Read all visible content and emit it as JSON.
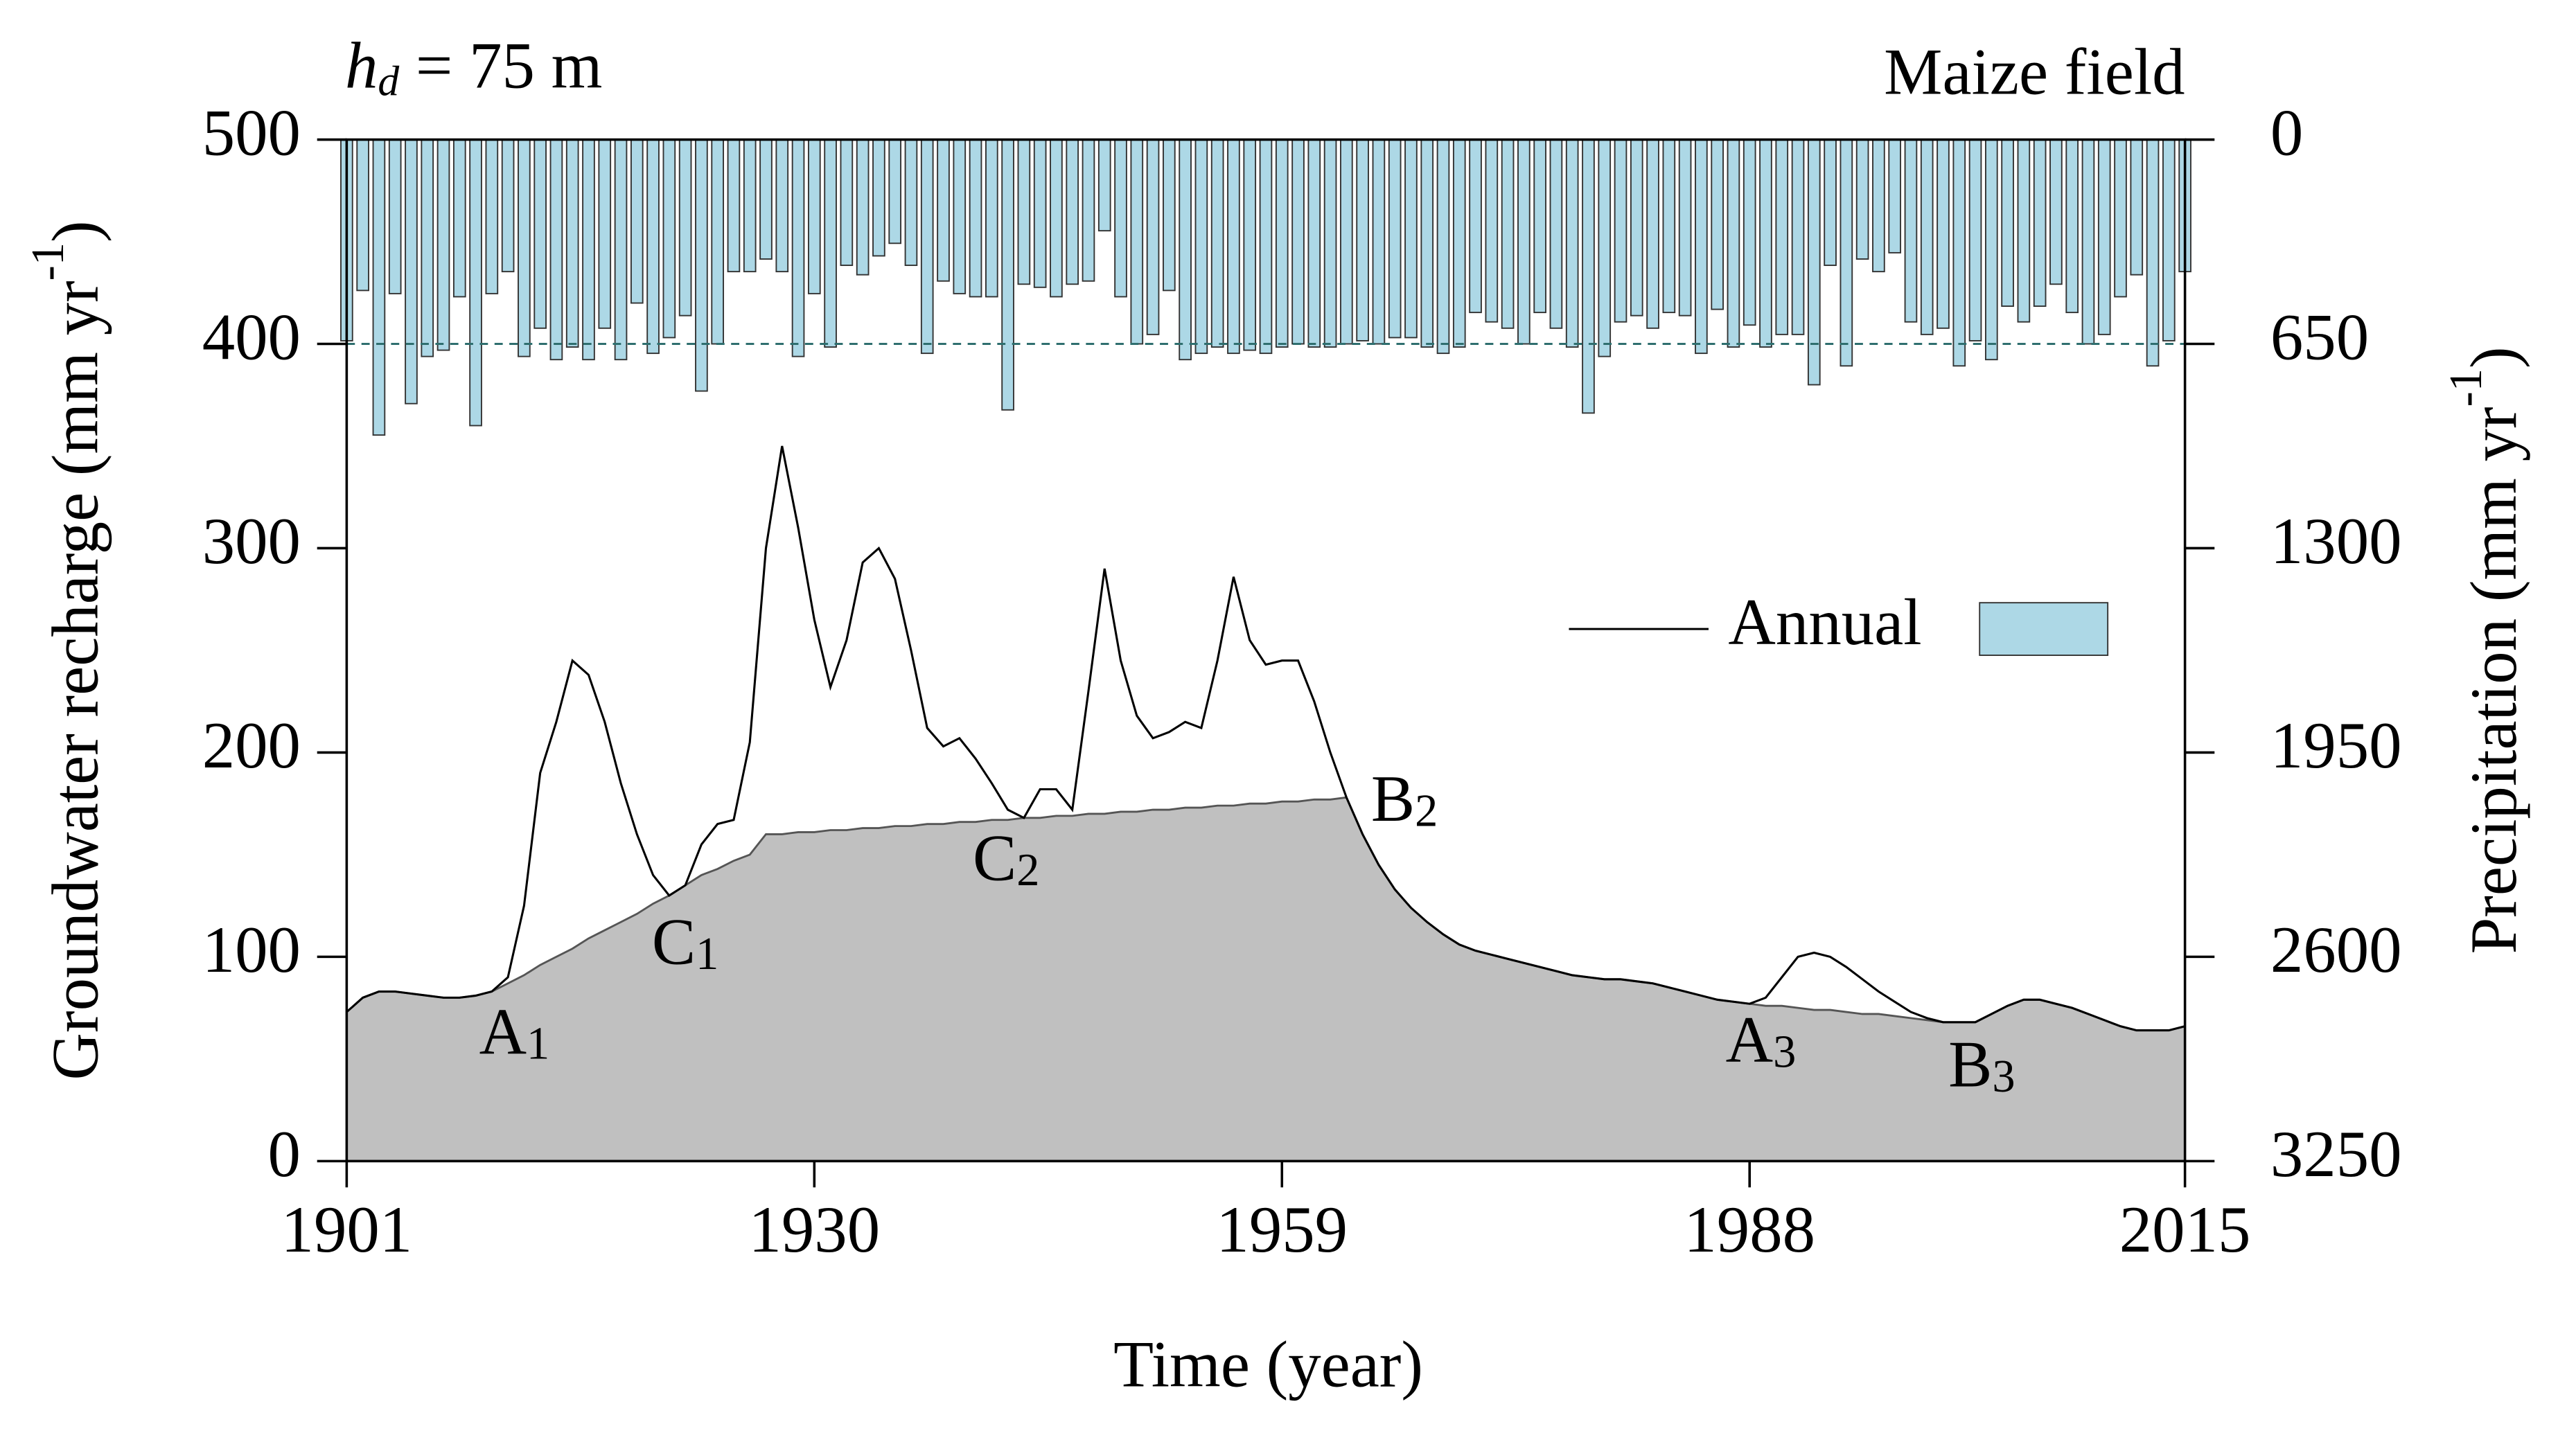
{
  "chart_data": {
    "type": "line",
    "title": {
      "var": "h",
      "sub": "d",
      "rest": "= 75 m"
    },
    "title_right": "Maize field",
    "xlabel": "Time (year)",
    "ylabel": {
      "text": "Groundwater recharge (mm yr",
      "sup": "-1",
      "end": ")"
    },
    "y2label": {
      "text": "Precipitation (mm yr",
      "sup": "-1",
      "end": ")"
    },
    "x": [
      1901,
      1902,
      1903,
      1904,
      1905,
      1906,
      1907,
      1908,
      1909,
      1910,
      1911,
      1912,
      1913,
      1914,
      1915,
      1916,
      1917,
      1918,
      1919,
      1920,
      1921,
      1922,
      1923,
      1924,
      1925,
      1926,
      1927,
      1928,
      1929,
      1930,
      1931,
      1932,
      1933,
      1934,
      1935,
      1936,
      1937,
      1938,
      1939,
      1940,
      1941,
      1942,
      1943,
      1944,
      1945,
      1946,
      1947,
      1948,
      1949,
      1950,
      1951,
      1952,
      1953,
      1954,
      1955,
      1956,
      1957,
      1958,
      1959,
      1960,
      1961,
      1962,
      1963,
      1964,
      1965,
      1966,
      1967,
      1968,
      1969,
      1970,
      1971,
      1972,
      1973,
      1974,
      1975,
      1976,
      1977,
      1978,
      1979,
      1980,
      1981,
      1982,
      1983,
      1984,
      1985,
      1986,
      1987,
      1988,
      1989,
      1990,
      1991,
      1992,
      1993,
      1994,
      1995,
      1996,
      1997,
      1998,
      1999,
      2000,
      2001,
      2002,
      2003,
      2004,
      2005,
      2006,
      2007,
      2008,
      2009,
      2010,
      2011,
      2012,
      2013,
      2014,
      2015
    ],
    "xlim": [
      1901,
      2015
    ],
    "xticks": [
      1901,
      1930,
      1959,
      1988,
      2015
    ],
    "ylim": [
      0,
      500
    ],
    "yticks": [
      0,
      100,
      200,
      300,
      400,
      500
    ],
    "y2lim": [
      0,
      3250
    ],
    "y2ticks": [
      0,
      650,
      1300,
      1950,
      2600,
      3250
    ],
    "y2_inverted": true,
    "reference_line_y2": 650,
    "legend": "center right",
    "series": [
      {
        "name": "Annual",
        "kind": "line",
        "color": "#000000",
        "values": [
          73,
          80,
          83,
          83,
          82,
          81,
          80,
          80,
          81,
          83,
          90,
          125,
          190,
          215,
          245,
          238,
          215,
          185,
          160,
          140,
          130,
          135,
          155,
          165,
          167,
          205,
          300,
          350,
          310,
          265,
          232,
          255,
          293,
          300,
          285,
          250,
          212,
          203,
          207,
          197,
          185,
          172,
          168,
          182,
          182,
          172,
          230,
          290,
          245,
          218,
          207,
          210,
          215,
          212,
          245,
          286,
          255,
          243,
          245,
          245,
          225,
          200,
          178,
          160,
          145,
          133,
          124,
          117,
          111,
          106,
          103,
          101,
          99,
          97,
          95,
          93,
          91,
          90,
          89,
          89,
          88,
          87,
          85,
          83,
          81,
          79,
          78,
          77,
          80,
          90,
          100,
          102,
          100,
          95,
          89,
          83,
          78,
          73,
          70,
          68,
          68,
          68,
          72,
          76,
          79,
          79,
          77,
          75,
          72,
          69,
          66,
          64,
          64,
          64,
          66
        ]
      },
      {
        "kind": "area",
        "color": "#c0c0c0",
        "values": [
          73,
          80,
          83,
          83,
          82,
          81,
          80,
          80,
          81,
          83,
          87,
          91,
          96,
          100,
          104,
          109,
          113,
          117,
          121,
          126,
          130,
          135,
          140,
          143,
          147,
          150,
          160,
          160,
          161,
          161,
          162,
          162,
          163,
          163,
          164,
          164,
          165,
          165,
          166,
          166,
          167,
          167,
          168,
          168,
          169,
          169,
          170,
          170,
          171,
          171,
          172,
          172,
          173,
          173,
          174,
          174,
          175,
          175,
          176,
          176,
          177,
          177,
          178,
          160,
          145,
          133,
          124,
          117,
          111,
          106,
          103,
          101,
          99,
          97,
          95,
          93,
          91,
          90,
          89,
          89,
          88,
          87,
          85,
          83,
          81,
          79,
          78,
          77,
          76,
          76,
          75,
          74,
          74,
          73,
          72,
          72,
          71,
          70,
          69,
          68,
          68,
          68,
          72,
          76,
          79,
          79,
          77,
          75,
          72,
          69,
          66,
          64,
          64,
          64,
          66
        ]
      },
      {
        "kind": "bar",
        "axis": "y2",
        "color": "#add8e6",
        "values": [
          640,
          480,
          940,
          490,
          840,
          690,
          670,
          500,
          910,
          490,
          420,
          690,
          600,
          700,
          660,
          700,
          600,
          700,
          520,
          680,
          630,
          560,
          800,
          650,
          420,
          420,
          380,
          420,
          690,
          490,
          660,
          400,
          430,
          370,
          330,
          400,
          680,
          450,
          490,
          500,
          500,
          860,
          460,
          470,
          500,
          460,
          450,
          290,
          500,
          650,
          620,
          480,
          700,
          680,
          660,
          680,
          670,
          680,
          660,
          650,
          660,
          660,
          650,
          640,
          650,
          630,
          630,
          660,
          680,
          660,
          550,
          580,
          600,
          650,
          550,
          600,
          660,
          870,
          690,
          580,
          560,
          600,
          550,
          560,
          680,
          540,
          660,
          590,
          660,
          620,
          620,
          780,
          400,
          720,
          380,
          420,
          360,
          580,
          620,
          600,
          720,
          640,
          700,
          530,
          580,
          530,
          460,
          550,
          650,
          620,
          500,
          430,
          720,
          640,
          420
        ]
      }
    ],
    "annotations": [
      {
        "label": "A",
        "sub": "1",
        "x": 1911.4,
        "y": 60
      },
      {
        "label": "C",
        "sub": "1",
        "x": 1922,
        "y": 104
      },
      {
        "label": "C",
        "sub": "2",
        "x": 1941.9,
        "y": 145
      },
      {
        "label": "B",
        "sub": "2",
        "x": 1966.6,
        "y": 174
      },
      {
        "label": "A",
        "sub": "3",
        "x": 1988.7,
        "y": 56
      },
      {
        "label": "B",
        "sub": "3",
        "x": 2002.4,
        "y": 44
      }
    ]
  }
}
